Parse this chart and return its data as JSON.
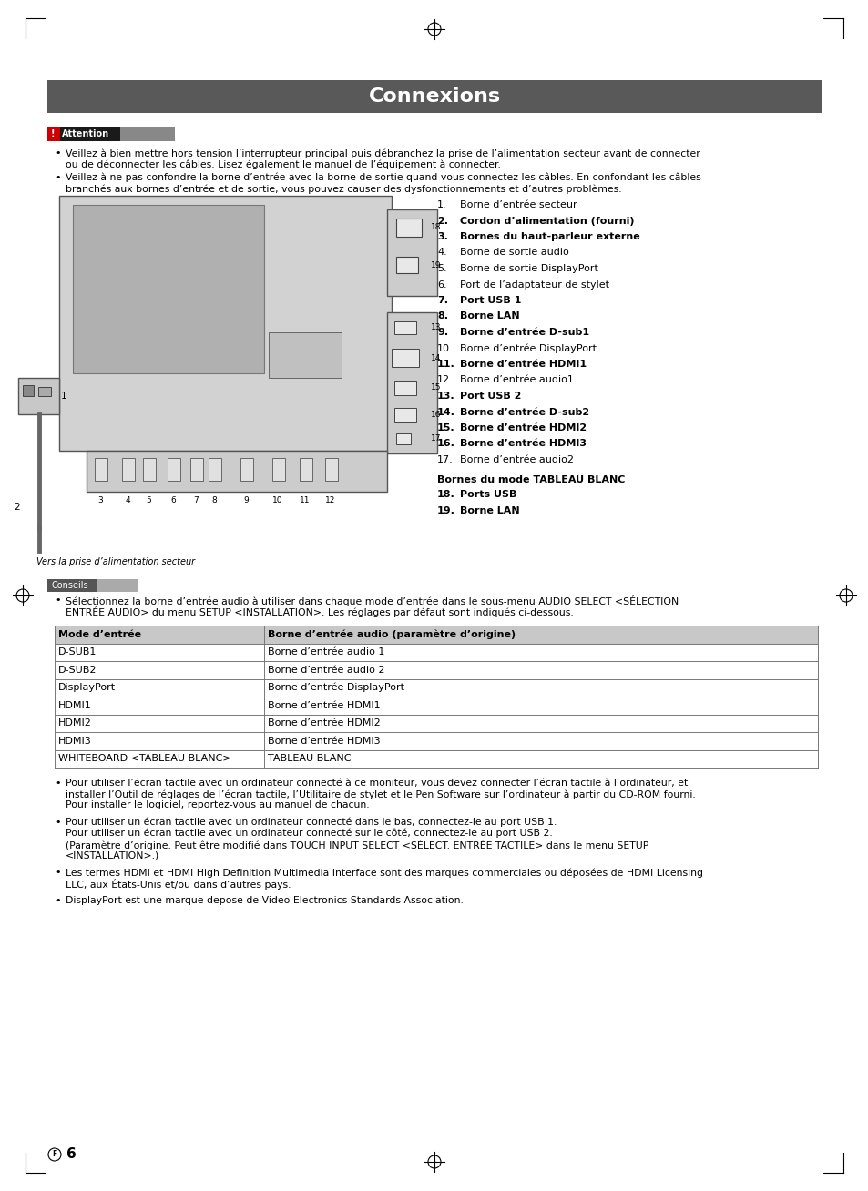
{
  "title": "Connexions",
  "title_bg": "#595959",
  "title_color": "#ffffff",
  "attention_label": "!Attention",
  "attention_bg_left": "#333333",
  "attention_bg_right": "#aaaaaa",
  "conseils_label": "Conseils",
  "conseils_bg_left": "#888888",
  "conseils_bg_right": "#cccccc",
  "numbered_items": [
    [
      "1.",
      "Borne d’entrée secteur",
      false
    ],
    [
      "2.",
      "Cordon d’alimentation (fourni)",
      true
    ],
    [
      "3.",
      "Bornes du haut-parleur externe",
      true
    ],
    [
      "4.",
      "Borne de sortie audio",
      false
    ],
    [
      "5.",
      "Borne de sortie DisplayPort",
      false
    ],
    [
      "6.",
      "Port de l’adaptateur de stylet",
      false
    ],
    [
      "7.",
      "Port USB 1",
      true
    ],
    [
      "8.",
      "Borne LAN",
      true
    ],
    [
      "9.",
      "Borne d’entrée D-sub1",
      true
    ],
    [
      "10.",
      "Borne d’entrée DisplayPort",
      false
    ],
    [
      "11.",
      "Borne d’entrée HDMI1",
      true
    ],
    [
      "12.",
      "Borne d’entrée audio1",
      false
    ],
    [
      "13.",
      "Port USB 2",
      true
    ],
    [
      "14.",
      "Borne d’entrée D-sub2",
      true
    ],
    [
      "15.",
      "Borne d’entrée HDMI2",
      true
    ],
    [
      "16.",
      "Borne d’entrée HDMI3",
      true
    ],
    [
      "17.",
      "Borne d’entrée audio2",
      false
    ]
  ],
  "whiteboard_section": "Bornes du mode TABLEAU BLANC",
  "whiteboard_items": [
    [
      "18.",
      "Ports USB"
    ],
    [
      "19.",
      "Borne LAN"
    ]
  ],
  "diagram_caption": "Vers la prise d’alimentation secteur",
  "conseils_bullet1a": "Sélectionnez la borne d’entrée audio à utiliser dans chaque mode d’entrée dans le sous-menu AUDIO SELECT <SÉLECTION",
  "conseils_bullet1b": "ENTRÉE AUDIO> du menu SETUP <INSTALLATION>. Les réglages par défaut sont indiqués ci-dessous.",
  "table_headers": [
    "Mode d’entrée",
    "Borne d’entrée audio (paramètre d’origine)"
  ],
  "table_rows": [
    [
      "D-SUB1",
      "Borne d’entrée audio 1"
    ],
    [
      "D-SUB2",
      "Borne d’entrée audio 2"
    ],
    [
      "DisplayPort",
      "Borne d’entrée DisplayPort"
    ],
    [
      "HDMI1",
      "Borne d’entrée HDMI1"
    ],
    [
      "HDMI2",
      "Borne d’entrée HDMI2"
    ],
    [
      "HDMI3",
      "Borne d’entrée HDMI3"
    ],
    [
      "WHITEBOARD <TABLEAU BLANC>",
      "TABLEAU BLANC"
    ]
  ],
  "extra_bullets": [
    [
      "Pour utiliser l’écran tactile avec un ordinateur connecté à ce moniteur, vous devez connecter l’écran tactile à l’ordinateur, et",
      "installer l’Outil de réglages de l’écran tactile, l’Utilitaire de stylet et le Pen Software sur l’ordinateur à partir du CD-ROM fourni.",
      "Pour installer le logiciel, reportez-vous au manuel de chacun."
    ],
    [
      "Pour utiliser un écran tactile avec un ordinateur connecté dans le bas, connectez-le au port USB 1.",
      "Pour utiliser un écran tactile avec un ordinateur connecté sur le côté, connectez-le au port USB 2.",
      "(Paramètre d’origine. Peut être modifié dans TOUCH INPUT SELECT <SÉLECT. ENTRÉE TACTILE> dans le menu SETUP",
      "<INSTALLATION>.)"
    ],
    [
      "Les termes HDMI et HDMI High Definition Multimedia Interface sont des marques commerciales ou déposées de HDMI Licensing",
      "LLC, aux États-Unis et/ou dans d’autres pays."
    ],
    [
      "DisplayPort est une marque depose de Video Electronics Standards Association."
    ]
  ],
  "page_number": "6",
  "bg_color": "#ffffff"
}
